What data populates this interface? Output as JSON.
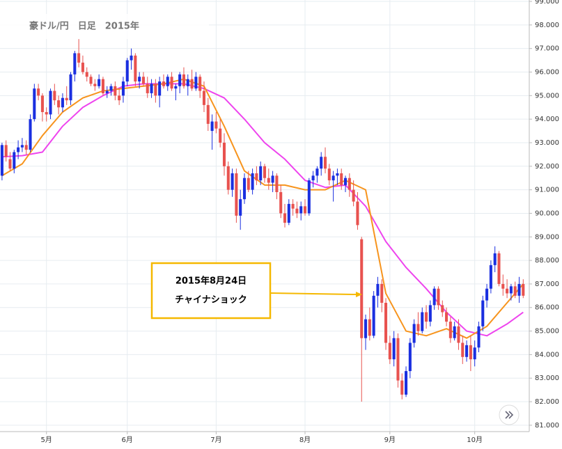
{
  "chart_data": {
    "type": "candlestick",
    "title": "豪ドル/円　日足　2015年",
    "annotation": [
      "2015年8月24日",
      "チャイナショック"
    ],
    "up_color": "#1a2fe0",
    "down_color": "#e8524f",
    "grid": true,
    "xlim": [
      -0.5,
      130.5
    ],
    "xticks": [
      {
        "value": 11,
        "label": "5月"
      },
      {
        "value": 31,
        "label": "6月"
      },
      {
        "value": 53,
        "label": "7月"
      },
      {
        "value": 75,
        "label": "8月"
      },
      {
        "value": 96,
        "label": "9月"
      },
      {
        "value": 117,
        "label": "10月"
      }
    ],
    "ylim": [
      80.73,
      99.06
    ],
    "yticks": [
      {
        "value": 81,
        "label": "81.000"
      },
      {
        "value": 82,
        "label": "82.000"
      },
      {
        "value": 83,
        "label": "83.000"
      },
      {
        "value": 84,
        "label": "84.000"
      },
      {
        "value": 85,
        "label": "85.000"
      },
      {
        "value": 86,
        "label": "86.000"
      },
      {
        "value": 87,
        "label": "87.000"
      },
      {
        "value": 88,
        "label": "88.000"
      },
      {
        "value": 89,
        "label": "89.000"
      },
      {
        "value": 90,
        "label": "90.000"
      },
      {
        "value": 91,
        "label": "91.000"
      },
      {
        "value": 92,
        "label": "92.000"
      },
      {
        "value": 93,
        "label": "93.000"
      },
      {
        "value": 94,
        "label": "94.000"
      },
      {
        "value": 95,
        "label": "95.000"
      },
      {
        "value": 96,
        "label": "96.000"
      },
      {
        "value": 97,
        "label": "97.000"
      },
      {
        "value": 98,
        "label": "98.000"
      },
      {
        "value": 99,
        "label": "99.000"
      }
    ],
    "ohlc": [
      [
        91.6,
        93,
        91.4,
        92.9
      ],
      [
        92.9,
        93.1,
        92.2,
        92.4
      ],
      [
        92.3,
        92.6,
        91.8,
        91.9
      ],
      [
        91.9,
        92.7,
        91.7,
        92.6
      ],
      [
        92.6,
        93.1,
        92.3,
        92.8
      ],
      [
        92.8,
        93.2,
        92.6,
        92.9
      ],
      [
        92.9,
        93.1,
        92.5,
        92.7
      ],
      [
        92.7,
        94.2,
        92.6,
        94
      ],
      [
        94,
        95.5,
        93.9,
        95.3
      ],
      [
        95.3,
        95.5,
        94.8,
        95
      ],
      [
        95,
        95.1,
        93.9,
        94.3
      ],
      [
        94.3,
        94.5,
        93.9,
        94.2
      ],
      [
        94.2,
        95.3,
        94,
        95.2
      ],
      [
        95.2,
        95.5,
        94.6,
        94.8
      ],
      [
        94.8,
        95,
        94.2,
        94.5
      ],
      [
        94.5,
        95.1,
        94.3,
        94.9
      ],
      [
        94.9,
        95.4,
        94.6,
        94.8
      ],
      [
        94.8,
        96,
        94.6,
        95.9
      ],
      [
        95.9,
        96.9,
        95.6,
        96.8
      ],
      [
        96.8,
        97.4,
        96.2,
        96.4
      ],
      [
        96.4,
        96.7,
        95.9,
        96
      ],
      [
        96,
        96.2,
        95.6,
        95.8
      ],
      [
        95.8,
        95.9,
        95.4,
        95.5
      ],
      [
        95.5,
        95.7,
        95.2,
        95.4
      ],
      [
        95.4,
        95.9,
        95.3,
        95.7
      ],
      [
        95.7,
        95.8,
        95,
        95.1
      ],
      [
        95.1,
        95.4,
        94.9,
        95.2
      ],
      [
        95.2,
        95.5,
        95,
        95.4
      ],
      [
        95.4,
        95.6,
        94.8,
        95
      ],
      [
        95,
        95.3,
        94.6,
        94.8
      ],
      [
        95,
        95.8,
        94.7,
        95.6
      ],
      [
        95.6,
        96.6,
        95.4,
        96.5
      ],
      [
        96.5,
        97,
        96.1,
        96.7
      ],
      [
        96.7,
        96.8,
        95.4,
        95.6
      ],
      [
        95.6,
        96,
        95.3,
        95.8
      ],
      [
        95.8,
        96,
        95.4,
        95.5
      ],
      [
        95.5,
        95.8,
        94.9,
        95.1
      ],
      [
        95.1,
        95.7,
        94.9,
        95.5
      ],
      [
        95.5,
        95.7,
        94.7,
        95
      ],
      [
        95,
        95.8,
        94.5,
        95.6
      ],
      [
        95.6,
        95.9,
        95.3,
        95.4
      ],
      [
        95.4,
        95.9,
        95.2,
        95.8
      ],
      [
        95.8,
        96,
        95.2,
        95.3
      ],
      [
        95.3,
        95.5,
        94.8,
        95.4
      ],
      [
        95.4,
        96,
        95.1,
        95.9
      ],
      [
        95.9,
        96.2,
        95.3,
        95.4
      ],
      [
        95.4,
        95.9,
        95,
        95.7
      ],
      [
        95.7,
        96.1,
        95.2,
        95.3
      ],
      [
        95.3,
        96,
        95.2,
        95.8
      ],
      [
        95.8,
        95.9,
        94.9,
        95.2
      ],
      [
        95.2,
        95.6,
        94.3,
        94.6
      ],
      [
        94.6,
        94.9,
        93.5,
        93.8
      ],
      [
        93.5,
        94.2,
        92.7,
        93.9
      ],
      [
        93.9,
        94.3,
        93.4,
        93.6
      ],
      [
        93.6,
        94,
        92.8,
        93
      ],
      [
        93,
        93.4,
        91.6,
        92
      ],
      [
        92,
        92.2,
        90.8,
        91
      ],
      [
        91,
        91.9,
        90.7,
        91.7
      ],
      [
        91.7,
        91.9,
        89.6,
        89.9
      ],
      [
        89.9,
        91,
        89.3,
        90.6
      ],
      [
        90.6,
        91.7,
        90.4,
        91.5
      ],
      [
        91.5,
        91.8,
        90.9,
        91
      ],
      [
        91,
        91.9,
        90.8,
        91.7
      ],
      [
        91.7,
        92,
        91.2,
        91.4
      ],
      [
        91.4,
        92.2,
        91.2,
        92
      ],
      [
        92,
        92.1,
        91.3,
        91.5
      ],
      [
        91.5,
        91.9,
        91,
        91.3
      ],
      [
        91.3,
        91.8,
        90.9,
        91.6
      ],
      [
        91.6,
        91.7,
        90.6,
        90.9
      ],
      [
        90.9,
        91.2,
        89.8,
        90
      ],
      [
        90,
        90.4,
        89.4,
        89.6
      ],
      [
        89.6,
        90.6,
        89.5,
        90.4
      ],
      [
        90.4,
        90.6,
        89.9,
        90.2
      ],
      [
        90.2,
        90.5,
        89.8,
        90
      ],
      [
        90,
        90.5,
        89.7,
        90.3
      ],
      [
        90.3,
        90.6,
        89.9,
        90
      ],
      [
        90,
        91.5,
        89.9,
        91.4
      ],
      [
        91.4,
        91.8,
        91.1,
        91.6
      ],
      [
        91.6,
        92,
        91.3,
        91.9
      ],
      [
        91.9,
        92.6,
        91.6,
        92.4
      ],
      [
        92.4,
        92.8,
        91.7,
        91.9
      ],
      [
        91.9,
        92.1,
        91.2,
        91.4
      ],
      [
        91.4,
        91.8,
        90.5,
        91.6
      ],
      [
        91.6,
        91.9,
        91.2,
        91.7
      ],
      [
        91.7,
        91.9,
        91,
        91.2
      ],
      [
        91.2,
        91.6,
        90.9,
        91.5
      ],
      [
        91.5,
        91.7,
        90.7,
        91
      ],
      [
        91,
        91.4,
        90.3,
        90.5
      ],
      [
        90.5,
        90.9,
        89.3,
        89.5
      ],
      [
        88.9,
        89,
        82,
        84.7
      ],
      [
        84.7,
        85.7,
        84.2,
        85.5
      ],
      [
        85.5,
        86,
        84.6,
        84.8
      ],
      [
        84.8,
        86.7,
        84.7,
        86.5
      ],
      [
        86.5,
        87.3,
        86,
        87
      ],
      [
        87,
        87.2,
        85.8,
        86.2
      ],
      [
        86.2,
        86.4,
        84.2,
        84.5
      ],
      [
        84.5,
        84.8,
        83.6,
        83.8
      ],
      [
        83.8,
        85,
        83.5,
        84.7
      ],
      [
        84.7,
        84.9,
        82.6,
        82.9
      ],
      [
        82.9,
        83.2,
        82.1,
        82.3
      ],
      [
        82.3,
        83.5,
        82.2,
        83.3
      ],
      [
        83.3,
        84.7,
        83,
        84.5
      ],
      [
        84.5,
        85.5,
        84.3,
        85.3
      ],
      [
        85.3,
        85.8,
        84.8,
        85
      ],
      [
        85,
        86,
        84.9,
        85.8
      ],
      [
        85.8,
        86.1,
        85.1,
        85.4
      ],
      [
        85.4,
        86.3,
        85.2,
        86.1
      ],
      [
        86.1,
        86.9,
        85.9,
        86.8
      ],
      [
        86.8,
        86.9,
        85.9,
        86.1
      ],
      [
        86.1,
        86.3,
        85.6,
        85.8
      ],
      [
        85.8,
        86,
        85.2,
        85.4
      ],
      [
        85.4,
        85.6,
        84.5,
        84.7
      ],
      [
        84.7,
        85.4,
        84.6,
        85.2
      ],
      [
        85.2,
        85.5,
        84.2,
        84.5
      ],
      [
        84.5,
        84.8,
        83.6,
        83.9
      ],
      [
        83.9,
        84.6,
        83.7,
        84.4
      ],
      [
        84.4,
        84.8,
        83.3,
        83.8
      ],
      [
        83.8,
        84.6,
        83.5,
        84.3
      ],
      [
        84.3,
        85.4,
        84.1,
        85.2
      ],
      [
        85.2,
        86.5,
        85,
        86.3
      ],
      [
        86.3,
        87,
        86,
        86.8
      ],
      [
        86.8,
        88,
        86.6,
        87.8
      ],
      [
        87.8,
        88.6,
        87.5,
        88.3
      ],
      [
        88.3,
        88.4,
        86.9,
        87
      ],
      [
        87,
        87.4,
        86.5,
        86.8
      ],
      [
        86.8,
        87.2,
        86.4,
        86.6
      ],
      [
        86.6,
        87,
        86.3,
        86.9
      ],
      [
        86.9,
        87.1,
        86.4,
        86.5
      ],
      [
        86.5,
        87.3,
        86.2,
        87
      ],
      [
        87,
        87.2,
        86.4,
        86.5
      ]
    ],
    "series": [
      {
        "color": "#ee44ee",
        "x": [
          0,
          5,
          10,
          15,
          20,
          25,
          30,
          35,
          40,
          45,
          50,
          55,
          60,
          65,
          70,
          75,
          80,
          85,
          90,
          95,
          100,
          105,
          110,
          115,
          120,
          125,
          129
        ],
        "values": [
          92.4,
          92.45,
          92.6,
          93.7,
          94.5,
          95.0,
          95.4,
          95.5,
          95.5,
          95.5,
          95.3,
          94.9,
          94.0,
          93.0,
          92.3,
          91.4,
          91.1,
          91.2,
          90.3,
          88.8,
          87.7,
          86.8,
          85.8,
          85.0,
          84.8,
          85.3,
          85.8
        ]
      },
      {
        "color": "#f7941d",
        "x": [
          0,
          5,
          10,
          15,
          20,
          25,
          30,
          35,
          40,
          45,
          50,
          55,
          60,
          65,
          70,
          75,
          80,
          85,
          90,
          95,
          100,
          105,
          110,
          115,
          120,
          125,
          129
        ],
        "values": [
          91.6,
          92.1,
          93.3,
          94.3,
          94.9,
          95.2,
          95.3,
          95.4,
          95.5,
          95.7,
          95.4,
          93.7,
          91.8,
          91.2,
          91.2,
          91.0,
          91.0,
          91.4,
          91.0,
          86.6,
          85.0,
          84.8,
          85.1,
          84.7,
          85.2,
          86.2,
          87.0
        ]
      }
    ]
  }
}
